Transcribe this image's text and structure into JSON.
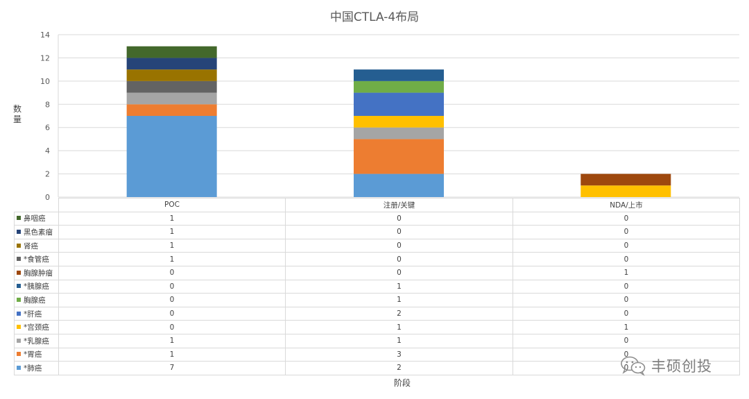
{
  "chart_data": {
    "type": "bar",
    "stacked": true,
    "title": "中国CTLA-4布局",
    "xlabel": "阶段",
    "ylabel": "数量",
    "ylim": [
      0,
      14
    ],
    "yticks": [
      0,
      2,
      4,
      6,
      8,
      10,
      12,
      14
    ],
    "grid": true,
    "legend_placement": "data-table",
    "categories": [
      "POC",
      "注册/关键",
      "NDA/上市"
    ],
    "series": [
      {
        "name": "*肺癌",
        "color": "#5b9bd5",
        "values": [
          7,
          2,
          0
        ]
      },
      {
        "name": "*胃癌",
        "color": "#ed7d31",
        "values": [
          1,
          3,
          0
        ]
      },
      {
        "name": "*乳腺癌",
        "color": "#a5a5a5",
        "values": [
          1,
          1,
          0
        ]
      },
      {
        "name": "*宫颈癌",
        "color": "#ffc000",
        "values": [
          0,
          1,
          1
        ]
      },
      {
        "name": "*肝癌",
        "color": "#4472c4",
        "values": [
          0,
          2,
          0
        ]
      },
      {
        "name": "胸腺癌",
        "color": "#70ad47",
        "values": [
          0,
          1,
          0
        ]
      },
      {
        "name": "*胰腺癌",
        "color": "#255e91",
        "values": [
          0,
          1,
          0
        ]
      },
      {
        "name": "胸腺肿瘤",
        "color": "#9e480e",
        "values": [
          0,
          0,
          1
        ]
      },
      {
        "name": "*食管癌",
        "color": "#636363",
        "values": [
          1,
          0,
          0
        ]
      },
      {
        "name": "肾癌",
        "color": "#997300",
        "values": [
          1,
          0,
          0
        ]
      },
      {
        "name": "黑色素瘤",
        "color": "#264478",
        "values": [
          1,
          0,
          0
        ]
      },
      {
        "name": "鼻咽癌",
        "color": "#43682b",
        "values": [
          1,
          0,
          0
        ]
      }
    ]
  },
  "watermark": {
    "text": "丰硕创投",
    "icon": "wechat-icon"
  }
}
